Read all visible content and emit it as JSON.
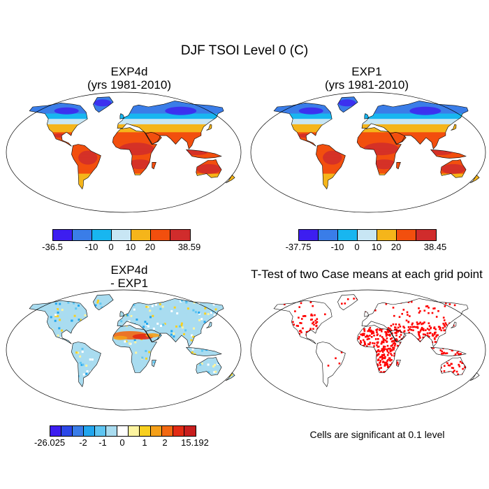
{
  "figure": {
    "title": "DJF TSOI Level 0 (C)"
  },
  "panels": {
    "top_left": {
      "title_line1": "EXP4d",
      "title_line2": "(yrs 1981-2010)"
    },
    "top_right": {
      "title_line1": "EXP1",
      "title_line2": "(yrs 1981-2010)"
    },
    "bottom_left": {
      "title_line1": "EXP4d",
      "title_line2": "- EXP1"
    },
    "bottom_right": {
      "title": "T-Test of two Case means at each grid point",
      "note": "Cells are significant at 0.1 level"
    }
  },
  "colorbars": {
    "cbar1": {
      "colors": [
        "#3d1ef0",
        "#3a7de8",
        "#18b6f0",
        "#c8e6f4",
        "#f5b51a",
        "#f24f0e",
        "#d02c2c"
      ],
      "labels": [
        "-36.5",
        "-10",
        "0",
        "10",
        "20",
        "38.59"
      ]
    },
    "cbar2": {
      "colors": [
        "#3d1ef0",
        "#3a7de8",
        "#18b6f0",
        "#c8e6f4",
        "#f5b51a",
        "#f24f0e",
        "#d02c2c"
      ],
      "labels": [
        "-37.75",
        "-10",
        "0",
        "10",
        "20",
        "38.45"
      ]
    },
    "cbar3": {
      "colors": [
        "#3d1ef0",
        "#2c48e8",
        "#3a7de8",
        "#22a6ee",
        "#5ec5f2",
        "#a9dcf0",
        "#ffffff",
        "#fdf4a0",
        "#f8d020",
        "#f5a019",
        "#f26812",
        "#e22b14",
        "#c81e1e"
      ],
      "labels": [
        "-26.025",
        "-2",
        "-1",
        "0",
        "1",
        "2",
        "15.192"
      ]
    }
  },
  "colors": {
    "significant": "#ff0000",
    "ocean": "#ffffff",
    "outline": "#000000"
  }
}
